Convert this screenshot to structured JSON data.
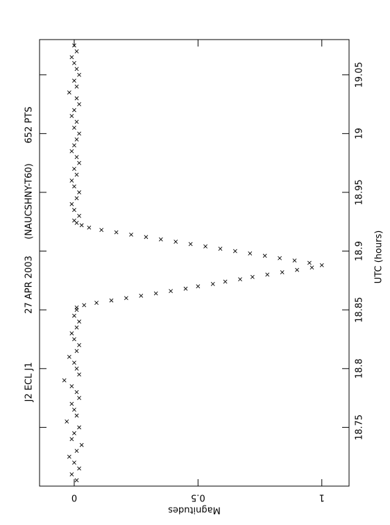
{
  "chart_data": {
    "type": "scatter",
    "title_parts": [
      "J2 ECL J1",
      "27 APR 2003",
      "(NAUCSHNY-T60)",
      "652 PTS"
    ],
    "x_label": "UTC (hours)",
    "y_label": "Magnitudes",
    "xlim": [
      18.7,
      19.08
    ],
    "xticks": [
      18.75,
      18.8,
      18.85,
      18.9,
      18.95,
      19,
      19.05
    ],
    "ylim": [
      -0.14,
      1.11
    ],
    "yticks": [
      0,
      0.5,
      1
    ],
    "y_inverted": true,
    "color": "#000000",
    "x": [
      18.705,
      18.71,
      18.715,
      18.72,
      18.725,
      18.73,
      18.735,
      18.74,
      18.745,
      18.75,
      18.755,
      18.76,
      18.765,
      18.77,
      18.775,
      18.78,
      18.785,
      18.79,
      18.795,
      18.8,
      18.805,
      18.81,
      18.815,
      18.82,
      18.825,
      18.83,
      18.835,
      18.84,
      18.845,
      18.85,
      18.852,
      18.854,
      18.856,
      18.858,
      18.86,
      18.862,
      18.864,
      18.866,
      18.868,
      18.87,
      18.872,
      18.874,
      18.876,
      18.878,
      18.88,
      18.882,
      18.884,
      18.886,
      18.888,
      18.89,
      18.892,
      18.894,
      18.896,
      18.898,
      18.9,
      18.902,
      18.904,
      18.906,
      18.908,
      18.91,
      18.912,
      18.914,
      18.916,
      18.918,
      18.92,
      18.922,
      18.924,
      18.926,
      18.93,
      18.935,
      18.94,
      18.945,
      18.95,
      18.955,
      18.96,
      18.965,
      18.97,
      18.975,
      18.98,
      18.985,
      18.99,
      18.995,
      19.0,
      19.005,
      19.01,
      19.015,
      19.02,
      19.025,
      19.03,
      19.035,
      19.04,
      19.045,
      19.05,
      19.055,
      19.06,
      19.065,
      19.07,
      19.075
    ],
    "values": [
      0.01,
      -0.01,
      0.02,
      0,
      -0.02,
      0.01,
      0.03,
      -0.01,
      0,
      0.02,
      -0.03,
      0.01,
      0,
      -0.01,
      0.02,
      0.01,
      -0.01,
      -0.04,
      0.02,
      0.01,
      0,
      -0.02,
      0.01,
      0.02,
      0,
      -0.01,
      0.01,
      0.02,
      0,
      0.01,
      0.01,
      0.04,
      0.09,
      0.15,
      0.21,
      0.27,
      0.33,
      0.39,
      0.45,
      0.5,
      0.56,
      0.61,
      0.67,
      0.72,
      0.78,
      0.84,
      0.9,
      0.96,
      1.0,
      0.95,
      0.89,
      0.83,
      0.77,
      0.71,
      0.65,
      0.59,
      0.53,
      0.47,
      0.41,
      0.35,
      0.29,
      0.23,
      0.17,
      0.11,
      0.06,
      0.03,
      0.01,
      0,
      0.02,
      0,
      -0.01,
      0.01,
      0.02,
      0,
      -0.01,
      0.01,
      0,
      0.02,
      0.01,
      -0.01,
      0,
      0.01,
      0.02,
      0,
      0.01,
      -0.01,
      0,
      0.02,
      0.01,
      -0.02,
      0.01,
      0,
      0.02,
      0.01,
      0,
      -0.01,
      0.01,
      0
    ]
  }
}
